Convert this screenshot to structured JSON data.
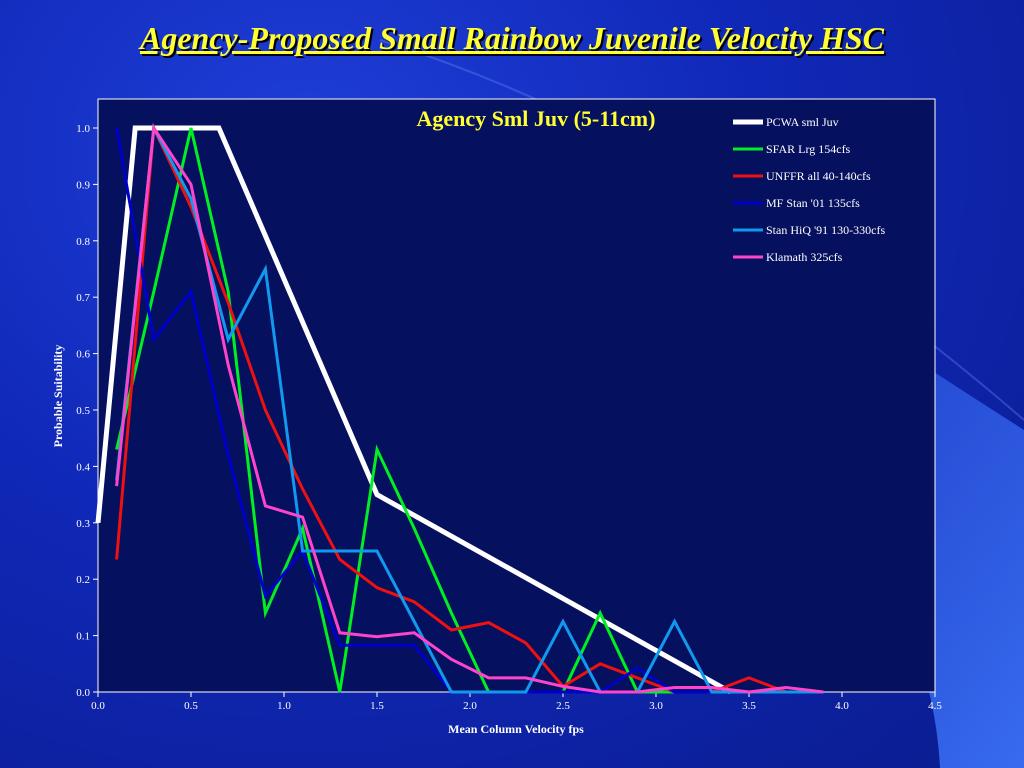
{
  "slide": {
    "title": "Agency-Proposed Small Rainbow Juvenile Velocity HSC"
  },
  "colors": {
    "background": "#1028b8",
    "plot_background": "#05105e",
    "title": "#ffff33",
    "chart_title": "#ffff33",
    "axis_text": "#ffffff"
  },
  "chart_data": {
    "type": "line",
    "title": "Agency Sml Juv (5-11cm)",
    "xlabel": "Mean Column Velocity fps",
    "ylabel": "Probable Suitability",
    "xlim": [
      0.0,
      4.5
    ],
    "ylim": [
      0.0,
      1.05
    ],
    "x_ticks": [
      "0.0",
      "0.5",
      "1.0",
      "1.5",
      "2.0",
      "2.5",
      "3.0",
      "3.5",
      "4.0",
      "4.5"
    ],
    "y_ticks": [
      "0.0",
      "0.1",
      "0.2",
      "0.3",
      "0.4",
      "0.5",
      "0.6",
      "0.7",
      "0.8",
      "0.9",
      "1.0"
    ],
    "grid": false,
    "legend_position": "top-right",
    "series": [
      {
        "name": "PCWA sml Juv",
        "color": "#ffffff",
        "width": "thick",
        "points": [
          [
            0.0,
            0.3
          ],
          [
            0.2,
            1.0
          ],
          [
            0.65,
            1.0
          ],
          [
            1.5,
            0.35
          ],
          [
            3.4,
            0.0
          ]
        ]
      },
      {
        "name": "SFAR Lrg 154cfs",
        "color": "#00ee22",
        "width": "normal",
        "points": [
          [
            0.1,
            0.43
          ],
          [
            0.3,
            0.71
          ],
          [
            0.5,
            1.0
          ],
          [
            0.7,
            0.71
          ],
          [
            0.9,
            0.14
          ],
          [
            1.1,
            0.29
          ],
          [
            1.3,
            0.0
          ],
          [
            1.5,
            0.43
          ],
          [
            1.7,
            0.29
          ],
          [
            1.9,
            0.14
          ],
          [
            2.1,
            0.0
          ],
          [
            2.3,
            0.0
          ],
          [
            2.5,
            0.0
          ],
          [
            2.7,
            0.14
          ],
          [
            2.9,
            0.0
          ],
          [
            3.1,
            0.0
          ]
        ]
      },
      {
        "name": "UNFFR all 40-140cfs",
        "color": "#ee1111",
        "width": "normal",
        "points": [
          [
            0.1,
            0.235
          ],
          [
            0.3,
            1.0
          ],
          [
            0.5,
            0.86
          ],
          [
            0.7,
            0.69
          ],
          [
            0.9,
            0.5
          ],
          [
            1.1,
            0.36
          ],
          [
            1.3,
            0.235
          ],
          [
            1.5,
            0.185
          ],
          [
            1.7,
            0.16
          ],
          [
            1.9,
            0.11
          ],
          [
            2.1,
            0.123
          ],
          [
            2.3,
            0.087
          ],
          [
            2.5,
            0.01
          ],
          [
            2.7,
            0.05
          ],
          [
            2.9,
            0.025
          ],
          [
            3.1,
            0.0
          ],
          [
            3.3,
            0.0
          ],
          [
            3.5,
            0.025
          ],
          [
            3.7,
            0.0
          ],
          [
            3.9,
            0.0
          ]
        ]
      },
      {
        "name": "MF Stan '01 135cfs",
        "color": "#0000cc",
        "width": "normal",
        "points": [
          [
            0.1,
            1.0
          ],
          [
            0.3,
            0.625
          ],
          [
            0.5,
            0.71
          ],
          [
            0.7,
            0.42
          ],
          [
            0.9,
            0.17
          ],
          [
            1.1,
            0.25
          ],
          [
            1.3,
            0.083
          ],
          [
            1.5,
            0.083
          ],
          [
            1.7,
            0.083
          ],
          [
            1.9,
            0.0
          ],
          [
            2.1,
            0.0
          ],
          [
            2.3,
            0.0
          ],
          [
            2.5,
            0.0
          ],
          [
            2.7,
            0.0
          ],
          [
            2.9,
            0.042
          ],
          [
            3.1,
            0.0
          ],
          [
            3.3,
            0.0
          ]
        ]
      },
      {
        "name": "Stan HiQ '91 130-330cfs",
        "color": "#1199ee",
        "width": "normal",
        "points": [
          [
            0.1,
            0.375
          ],
          [
            0.3,
            1.0
          ],
          [
            0.5,
            0.875
          ],
          [
            0.7,
            0.625
          ],
          [
            0.9,
            0.75
          ],
          [
            1.1,
            0.25
          ],
          [
            1.3,
            0.25
          ],
          [
            1.5,
            0.25
          ],
          [
            1.7,
            0.125
          ],
          [
            1.9,
            0.0
          ],
          [
            2.1,
            0.0
          ],
          [
            2.3,
            0.0
          ],
          [
            2.5,
            0.125
          ],
          [
            2.7,
            0.0
          ],
          [
            2.9,
            0.0
          ],
          [
            3.1,
            0.125
          ],
          [
            3.3,
            0.0
          ],
          [
            3.5,
            0.0
          ],
          [
            3.7,
            0.0
          ],
          [
            3.9,
            0.0
          ]
        ]
      },
      {
        "name": "Klamath 325cfs",
        "color": "#ff44cc",
        "width": "normal",
        "points": [
          [
            0.1,
            0.365
          ],
          [
            0.3,
            1.0
          ],
          [
            0.5,
            0.9
          ],
          [
            0.7,
            0.58
          ],
          [
            0.9,
            0.33
          ],
          [
            1.1,
            0.31
          ],
          [
            1.3,
            0.105
          ],
          [
            1.5,
            0.098
          ],
          [
            1.7,
            0.105
          ],
          [
            1.9,
            0.058
          ],
          [
            2.1,
            0.025
          ],
          [
            2.3,
            0.025
          ],
          [
            2.5,
            0.01
          ],
          [
            2.7,
            0.0
          ],
          [
            2.9,
            0.0
          ],
          [
            3.1,
            0.008
          ],
          [
            3.3,
            0.008
          ],
          [
            3.5,
            0.0
          ],
          [
            3.7,
            0.008
          ],
          [
            3.9,
            0.0
          ]
        ]
      }
    ]
  }
}
